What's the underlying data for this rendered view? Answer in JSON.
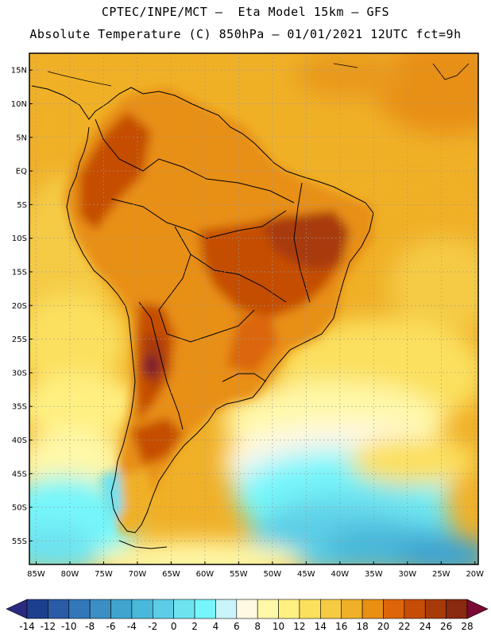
{
  "title": {
    "line1": "CPTEC/INPE/MCT –  Eta Model 15km – GFS",
    "line2": "Absolute Temperature (C) 850hPa – 01/01/2021 12UTC fct=9h"
  },
  "map": {
    "lat_labels": [
      "15N",
      "10N",
      "5N",
      "EQ",
      "5S",
      "10S",
      "15S",
      "20S",
      "25S",
      "30S",
      "35S",
      "40S",
      "45S",
      "50S",
      "55S"
    ],
    "lon_labels": [
      "85W",
      "80W",
      "75W",
      "70W",
      "65W",
      "60W",
      "55W",
      "50W",
      "45W",
      "40W",
      "35W",
      "30W",
      "25W",
      "20W"
    ]
  },
  "colorbar": {
    "ticks": [
      "-14",
      "-12",
      "-10",
      "-8",
      "-6",
      "-4",
      "-2",
      "0",
      "2",
      "4",
      "6",
      "8",
      "10",
      "12",
      "14",
      "16",
      "18",
      "20",
      "22",
      "24",
      "26",
      "28"
    ],
    "colors": [
      "#1d3f8e",
      "#2a5ba6",
      "#3278b8",
      "#3a8fc4",
      "#40a4cf",
      "#49b8da",
      "#5bcde6",
      "#6de3f0",
      "#76f6fa",
      "#c8f4fa",
      "#fff8e2",
      "#fff8a8",
      "#fff081",
      "#fbe05e",
      "#f5cb44",
      "#f0b027",
      "#e88f14",
      "#dc6608",
      "#c54d05",
      "#a83a0a",
      "#8a2a10"
    ],
    "left_arrow_color": "#2a2a80",
    "right_arrow_color": "#7a0a35"
  }
}
